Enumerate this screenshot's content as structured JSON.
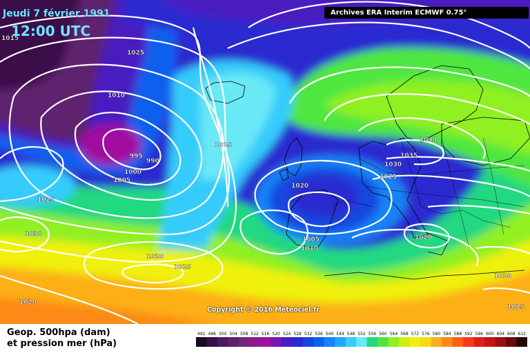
{
  "header": {
    "date": "Jeudi 7 février 1991",
    "time": "12:00 UTC",
    "archive": "Archives ERA Interim ECMWF 0.75°"
  },
  "copyright": "Copyright © 2016 Meteociel.fr",
  "legend": {
    "line1": "Geop. 500hpa (dam)",
    "line2": "et pression mer (hPa)"
  },
  "scale": {
    "ticks": [
      "492",
      "496",
      "500",
      "504",
      "508",
      "512",
      "516",
      "520",
      "524",
      "528",
      "532",
      "536",
      "540",
      "544",
      "548",
      "552",
      "556",
      "560",
      "564",
      "568",
      "572",
      "576",
      "580",
      "584",
      "588",
      "592",
      "596",
      "600",
      "604",
      "608",
      "612"
    ],
    "colors": [
      "#1a0a24",
      "#3a1048",
      "#4c1a5e",
      "#5e206e",
      "#73267a",
      "#8b1a8a",
      "#a010a0",
      "#7a16b0",
      "#4a1ec0",
      "#2a2ad0",
      "#1846e0",
      "#1060ee",
      "#1484f6",
      "#20a8fa",
      "#36ccfc",
      "#6ae8f6",
      "#22d880",
      "#50e640",
      "#90f020",
      "#cef010",
      "#f0f010",
      "#fcd818",
      "#fcb018",
      "#fc8a18",
      "#fc6018",
      "#f63a18",
      "#e41c18",
      "#c41414",
      "#9c0e0e",
      "#6c0808",
      "#240404"
    ]
  },
  "isobar_labels": [
    "1015",
    "1025",
    "1010",
    "995",
    "990",
    "1000",
    "1005",
    "1015",
    "1025",
    "1030",
    "1020",
    "1020",
    "1025",
    "1020",
    "1005",
    "1010",
    "1030",
    "1035",
    "1040",
    "1025",
    "1020",
    "1020",
    "1015"
  ]
}
